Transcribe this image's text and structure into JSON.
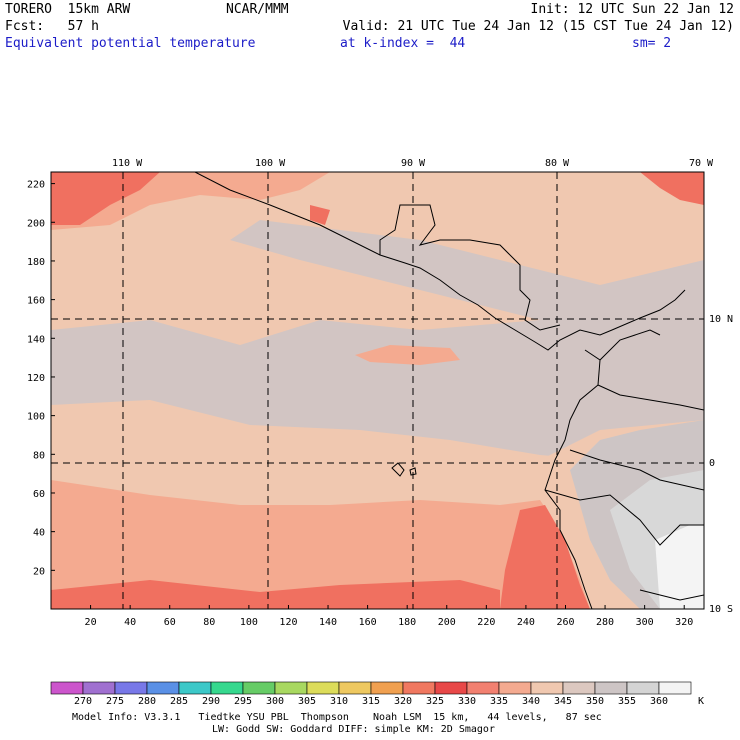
{
  "header": {
    "model": "TORERO  15km ARW",
    "org": "NCAR/MMM",
    "init": "Init: 12 UTC Sun 22 Jan 12",
    "fcst": "Fcst:   57 h",
    "valid": "Valid: 21 UTC Tue 24 Jan 12 (15 CST Tue 24 Jan 12)",
    "field": "Equivalent potential temperature",
    "level": "at k-index =  44",
    "smooth": "sm= 2"
  },
  "map": {
    "top_lon_labels": [
      "110 W",
      "100 W",
      "90 W",
      "80 W",
      "70 W"
    ],
    "right_lat_labels": [
      "10 N",
      "0",
      "10 S"
    ],
    "x_ticks": [
      "20",
      "40",
      "60",
      "80",
      "100",
      "120",
      "140",
      "160",
      "180",
      "200",
      "220",
      "240",
      "260",
      "280",
      "300",
      "320"
    ],
    "y_ticks": [
      "220",
      "200",
      "180",
      "160",
      "140",
      "120",
      "100",
      "80",
      "60",
      "40",
      "20"
    ],
    "fill_levels": {
      "background": "340-345 K",
      "warm_zones": "330-335 K",
      "cool_zones": "345-350 K",
      "mountain_zones": "355-360 K"
    }
  },
  "colorbar": {
    "colors": [
      "#cc55cc",
      "#a070d0",
      "#7878e8",
      "#5a90e6",
      "#3cc8c8",
      "#36d88e",
      "#66cc66",
      "#a8d860",
      "#dcdc5a",
      "#eec860",
      "#f0a050",
      "#f07860",
      "#e84848",
      "#f28070",
      "#f4aa90",
      "#f0c8b0",
      "#dcc8c0",
      "#cdc5c5",
      "#d4d4d4",
      "#f4f4f4"
    ],
    "labels": [
      "270",
      "275",
      "280",
      "285",
      "290",
      "295",
      "300",
      "305",
      "310",
      "315",
      "320",
      "325",
      "330",
      "335",
      "340",
      "345",
      "350",
      "355",
      "360"
    ],
    "unit": "K"
  },
  "footer": {
    "line1": "Model Info: V3.3.1   Tiedtke YSU PBL  Thompson    Noah LSM  15 km,   44 levels,   87 sec",
    "line2": "LW: Godd SW: Goddard DIFF: simple KM: 2D Smagor"
  }
}
